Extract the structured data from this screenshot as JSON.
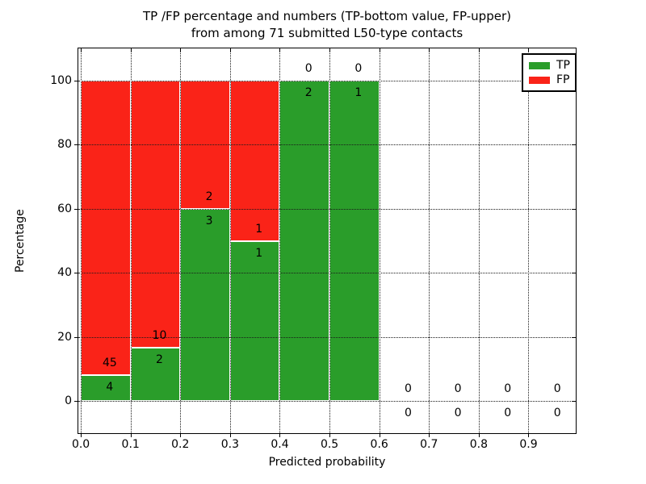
{
  "figure": {
    "title_line1": "TP /FP percentage and numbers (TP-bottom value, FP-upper)",
    "title_line2": "from among 71 submitted L50-type contacts"
  },
  "chart_data": {
    "type": "bar",
    "stacked": true,
    "orientation": "vertical",
    "title": "TP /FP percentage and numbers (TP-bottom value, FP-upper) from among 71 submitted L50-type contacts",
    "xlabel": "Predicted probability",
    "ylabel": "Percentage",
    "total_contacts": 71,
    "xlim": [
      -0.005,
      0.995
    ],
    "ylim": [
      -10,
      110
    ],
    "xtick_values": [
      0.0,
      0.1,
      0.2,
      0.3,
      0.4,
      0.5,
      0.6,
      0.7,
      0.8,
      0.9
    ],
    "xtick_labels": [
      "0.0",
      "0.1",
      "0.2",
      "0.3",
      "0.4",
      "0.5",
      "0.6",
      "0.7",
      "0.8",
      "0.9"
    ],
    "ytick_values": [
      0,
      20,
      40,
      60,
      80,
      100
    ],
    "ytick_labels": [
      "0",
      "20",
      "40",
      "60",
      "80",
      "100"
    ],
    "grid": {
      "style": "dotted",
      "color": "#1a1a1a",
      "above_bars": true
    },
    "series": [
      {
        "name": "TP",
        "color": "#2a9d2a",
        "position": "bottom"
      },
      {
        "name": "FP",
        "color": "#fa2318",
        "position": "top"
      }
    ],
    "bins": [
      {
        "x0": 0.0,
        "x1": 0.1,
        "tp": 4,
        "fp": 45
      },
      {
        "x0": 0.1,
        "x1": 0.2,
        "tp": 2,
        "fp": 10
      },
      {
        "x0": 0.2,
        "x1": 0.3,
        "tp": 3,
        "fp": 2
      },
      {
        "x0": 0.3,
        "x1": 0.4,
        "tp": 1,
        "fp": 1
      },
      {
        "x0": 0.4,
        "x1": 0.5,
        "tp": 2,
        "fp": 0
      },
      {
        "x0": 0.5,
        "x1": 0.6,
        "tp": 1,
        "fp": 0
      },
      {
        "x0": 0.6,
        "x1": 0.7,
        "tp": 0,
        "fp": 0
      },
      {
        "x0": 0.7,
        "x1": 0.8,
        "tp": 0,
        "fp": 0
      },
      {
        "x0": 0.8,
        "x1": 0.9,
        "tp": 0,
        "fp": 0
      },
      {
        "x0": 0.9,
        "x1": 1.0,
        "tp": 0,
        "fp": 0
      }
    ],
    "annotation_rule": "TP count printed below the TP/FP boundary, FP count printed above it",
    "legend": {
      "position": "upper right",
      "entries": [
        "TP",
        "FP"
      ]
    }
  }
}
